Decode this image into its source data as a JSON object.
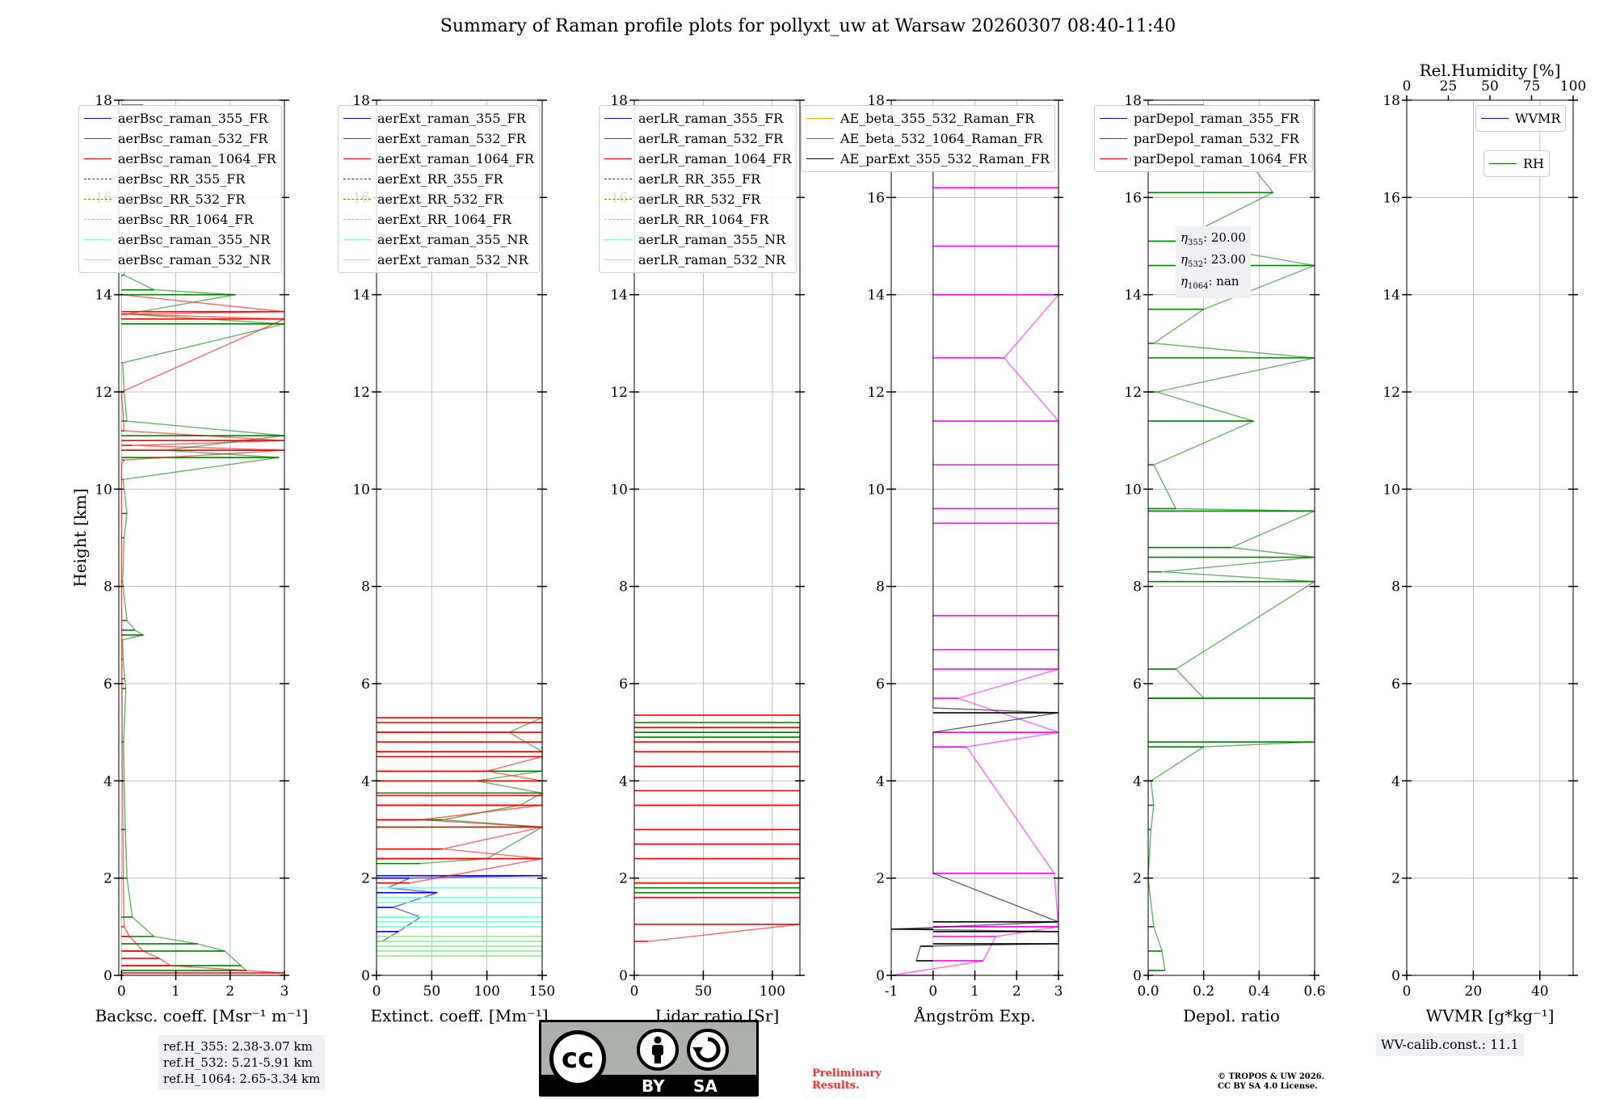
{
  "title": "Summary of Raman profile plots for pollyxt_uw at Warsaw 20260307 08:40-11:40",
  "chart_data": [
    {
      "type": "line",
      "id": "backscatter",
      "xlabel": "Backsc. coeff. [Msr⁻¹ m⁻¹]",
      "ylabel": "Height [km]",
      "xlim": [
        -0.05,
        3
      ],
      "ylim": [
        0,
        18
      ],
      "xticks": [
        0,
        1,
        2,
        3
      ],
      "yticks": [
        0,
        2,
        4,
        6,
        8,
        10,
        12,
        14,
        16,
        18
      ],
      "grid": true,
      "legend": "top-left",
      "series": [
        {
          "name": "aerBsc_raman_355_FR",
          "color": "#0000ff",
          "style": "solid",
          "x": [],
          "y": []
        },
        {
          "name": "aerBsc_raman_532_FR",
          "color": "#008000",
          "style": "solid",
          "x": [
            2.3,
            2.2,
            1.9,
            1.4,
            0.6,
            0.2,
            0.1,
            0.07,
            0.05,
            0.04,
            0.08,
            0.03,
            0.06,
            0.02,
            0.4,
            0.1,
            0.25,
            0.02,
            0.05,
            0.1,
            0.03,
            2.9,
            0.8,
            3.0,
            0.1,
            0.05,
            0.02,
            3.0,
            0.1,
            2.1,
            0.6,
            0.05,
            0.4
          ],
          "y": [
            0.1,
            0.2,
            0.5,
            0.65,
            0.8,
            1.2,
            2.0,
            3.0,
            4.0,
            4.8,
            5.9,
            6.5,
            6.1,
            6.9,
            7.0,
            7.3,
            7.1,
            8.1,
            9.0,
            9.5,
            10.2,
            10.65,
            10.8,
            11.1,
            11.4,
            12.0,
            12.6,
            13.4,
            13.6,
            14.0,
            14.1,
            14.4,
            17.9
          ]
        },
        {
          "name": "aerBsc_raman_1064_FR",
          "color": "#ff0000",
          "style": "solid",
          "x": [
            3.0,
            0.9,
            0.7,
            0.4,
            0.15,
            0.05,
            0.03,
            0.02,
            0.01,
            0.0,
            0.0,
            0.0,
            0.05,
            3.0,
            0.2,
            3.0,
            0.05,
            0.0,
            3.0,
            0.1,
            3.0,
            0.0
          ],
          "y": [
            0.05,
            0.2,
            0.35,
            0.5,
            0.8,
            1.0,
            2.0,
            4.0,
            6.0,
            8.0,
            10.0,
            10.5,
            10.6,
            10.8,
            10.9,
            11.0,
            11.2,
            12.0,
            13.5,
            13.6,
            13.65,
            14.0
          ]
        },
        {
          "name": "aerBsc_RR_355_FR",
          "color": "#800080",
          "style": "dashed",
          "x": [],
          "y": []
        },
        {
          "name": "aerBsc_RR_532_FR",
          "color": "#808000",
          "style": "dashed",
          "x": [],
          "y": []
        },
        {
          "name": "aerBsc_RR_1064_FR",
          "color": "#ffa07a",
          "style": "dashed",
          "x": [],
          "y": []
        },
        {
          "name": "aerBsc_raman_355_NR",
          "color": "#7fffd4",
          "style": "solid",
          "x": [],
          "y": []
        },
        {
          "name": "aerBsc_raman_532_NR",
          "color": "#90ee90",
          "style": "solid",
          "x": [],
          "y": []
        }
      ]
    },
    {
      "type": "line",
      "id": "extinction",
      "xlabel": "Extinct. coeff. [Mm⁻¹]",
      "xlim": [
        0,
        150
      ],
      "ylim": [
        0,
        18
      ],
      "xticks": [
        0,
        50,
        100,
        150
      ],
      "yticks": [
        0,
        2,
        4,
        6,
        8,
        10,
        12,
        14,
        16,
        18
      ],
      "grid": true,
      "legend": "top-left",
      "series": [
        {
          "name": "aerExt_raman_355_FR",
          "color": "#0000ff",
          "style": "solid",
          "x": [
            5,
            20,
            40,
            15,
            55,
            10,
            150,
            30
          ],
          "y": [
            0.7,
            0.9,
            1.2,
            1.4,
            1.7,
            1.8,
            2.05,
            2.0
          ]
        },
        {
          "name": "aerExt_raman_532_FR",
          "color": "#008000",
          "style": "solid",
          "x": [
            40,
            100,
            150,
            60,
            130,
            150,
            90,
            150,
            150,
            120,
            150
          ],
          "y": [
            2.3,
            2.4,
            3.05,
            3.2,
            3.5,
            3.75,
            4.0,
            4.2,
            4.6,
            5.0,
            5.3
          ]
        },
        {
          "name": "aerExt_raman_1064_FR",
          "color": "#ff0000",
          "style": "solid",
          "x": [
            30,
            150,
            60,
            150,
            40,
            150,
            150,
            150,
            100,
            150,
            150,
            150,
            150,
            150,
            150
          ],
          "y": [
            1.9,
            2.4,
            2.6,
            3.05,
            3.2,
            3.5,
            3.7,
            4.0,
            4.2,
            4.5,
            4.6,
            4.8,
            5.0,
            5.2,
            5.3
          ]
        },
        {
          "name": "aerExt_RR_355_FR",
          "color": "#800080",
          "style": "dashed",
          "x": [],
          "y": []
        },
        {
          "name": "aerExt_RR_532_FR",
          "color": "#808000",
          "style": "dashed",
          "x": [],
          "y": []
        },
        {
          "name": "aerExt_RR_1064_FR",
          "color": "#ffa07a",
          "style": "dashed",
          "x": [],
          "y": []
        },
        {
          "name": "aerExt_raman_355_NR",
          "color": "#7fffd4",
          "style": "solid",
          "x": [
            150,
            150,
            150,
            150,
            150,
            150
          ],
          "y": [
            1.0,
            1.1,
            1.2,
            1.5,
            1.6,
            1.8
          ]
        },
        {
          "name": "aerExt_raman_532_NR",
          "color": "#90ee90",
          "style": "solid",
          "x": [
            150,
            150,
            150,
            150,
            150
          ],
          "y": [
            0.4,
            0.5,
            0.6,
            0.7,
            0.8
          ]
        }
      ]
    },
    {
      "type": "line",
      "id": "lidar_ratio",
      "xlabel": "Lidar ratio [Sr]",
      "xlim": [
        0,
        120
      ],
      "ylim": [
        0,
        18
      ],
      "xticks": [
        0,
        50,
        100
      ],
      "yticks": [
        0,
        2,
        4,
        6,
        8,
        10,
        12,
        14,
        16,
        18
      ],
      "grid": true,
      "legend": "top-left",
      "series": [
        {
          "name": "aerLR_raman_355_FR",
          "color": "#0000ff",
          "style": "solid",
          "x": [],
          "y": []
        },
        {
          "name": "aerLR_raman_532_FR",
          "color": "#008000",
          "style": "solid",
          "x": [
            120,
            120,
            120,
            120,
            120
          ],
          "y": [
            1.7,
            1.8,
            4.9,
            5.0,
            5.2
          ]
        },
        {
          "name": "aerLR_raman_1064_FR",
          "color": "#ff0000",
          "style": "solid",
          "x": [
            10,
            120,
            120,
            120,
            120,
            120,
            120,
            120,
            120,
            120,
            120,
            120,
            120,
            120
          ],
          "y": [
            0.7,
            1.05,
            1.6,
            1.9,
            2.4,
            2.7,
            3.0,
            3.5,
            3.8,
            4.3,
            4.6,
            4.8,
            5.1,
            5.35
          ]
        },
        {
          "name": "aerLR_RR_355_FR",
          "color": "#800080",
          "style": "dashed",
          "x": [],
          "y": []
        },
        {
          "name": "aerLR_RR_532_FR",
          "color": "#808000",
          "style": "dashed",
          "x": [],
          "y": []
        },
        {
          "name": "aerLR_RR_1064_FR",
          "color": "#ffa07a",
          "style": "dashed",
          "x": [],
          "y": []
        },
        {
          "name": "aerLR_raman_355_NR",
          "color": "#7fffd4",
          "style": "solid",
          "x": [],
          "y": []
        },
        {
          "name": "aerLR_raman_532_NR",
          "color": "#90ee90",
          "style": "solid",
          "x": [],
          "y": []
        }
      ]
    },
    {
      "type": "line",
      "id": "angstrom",
      "xlabel": "Ångström Exp.",
      "xlim": [
        -1,
        3
      ],
      "ylim": [
        0,
        18
      ],
      "xticks": [
        -1,
        0,
        1,
        2,
        3
      ],
      "yticks": [
        0,
        2,
        4,
        6,
        8,
        10,
        12,
        14,
        16,
        18
      ],
      "grid": true,
      "legend": "top",
      "series": [
        {
          "name": "AE_beta_355_532_Raman_FR",
          "color": "#ffa500",
          "style": "solid",
          "x": [],
          "y": []
        },
        {
          "name": "AE_beta_532_1064_Raman_FR",
          "color": "#ff00ff",
          "style": "solid",
          "x": [
            -1,
            1.2,
            1.5,
            3.0,
            2.9,
            0.8,
            3.0,
            0.6,
            3.0,
            3.0,
            3.0,
            3.0,
            3.0,
            3.0,
            3.0,
            1.7,
            3.0,
            3.0,
            3.0
          ],
          "y": [
            0.0,
            0.3,
            0.8,
            1.0,
            2.1,
            4.7,
            5.0,
            5.7,
            6.3,
            6.7,
            7.4,
            9.3,
            9.6,
            10.5,
            11.4,
            12.7,
            14.0,
            15.0,
            16.2
          ]
        },
        {
          "name": "AE_parExt_355_532_Raman_FR",
          "color": "#000000",
          "style": "solid",
          "x": [
            -0.4,
            -0.3,
            3.0,
            3.0,
            -1,
            3.0,
            0.0,
            0.0,
            0.0,
            0.0,
            3.0,
            0.0
          ],
          "y": [
            0.3,
            0.6,
            0.65,
            0.9,
            0.95,
            1.1,
            2.1,
            3.0,
            5.0,
            5.5,
            5.4,
            17.0
          ]
        }
      ]
    },
    {
      "type": "line",
      "id": "depolarization",
      "xlabel": "Depol. ratio",
      "xlim": [
        0,
        0.6
      ],
      "ylim": [
        0,
        18
      ],
      "xticks": [
        0.0,
        0.2,
        0.4,
        0.6
      ],
      "yticks": [
        0,
        2,
        4,
        6,
        8,
        10,
        12,
        14,
        16,
        18
      ],
      "grid": true,
      "legend": "top",
      "annotations": [
        "η355: 20.00",
        "η532: 23.00",
        "η1064: nan"
      ],
      "series": [
        {
          "name": "parDepol_raman_355_FR",
          "color": "#0000ff",
          "style": "solid",
          "x": [],
          "y": []
        },
        {
          "name": "parDepol_raman_532_FR",
          "color": "#008000",
          "style": "solid",
          "x": [
            0.06,
            0.05,
            0.02,
            0.0,
            0.01,
            0.02,
            0.01,
            0.6,
            0.2,
            0.6,
            0.1,
            0.2,
            0.6,
            0.05,
            0.6,
            0.3,
            0.6,
            0.1,
            0.02,
            0.38,
            0.03,
            0.6,
            0.02,
            0.2,
            0.6,
            0.1,
            0.45,
            0.2
          ],
          "y": [
            0.1,
            0.5,
            1.0,
            2.0,
            3.0,
            3.5,
            4.0,
            4.8,
            4.7,
            5.7,
            6.3,
            5.7,
            8.1,
            8.3,
            8.6,
            8.8,
            9.55,
            9.6,
            10.5,
            11.4,
            12.0,
            12.7,
            13.0,
            13.7,
            14.6,
            15.1,
            16.1,
            17.9
          ]
        },
        {
          "name": "parDepol_raman_1064_FR",
          "color": "#ff0000",
          "style": "solid",
          "x": [],
          "y": []
        }
      ]
    },
    {
      "type": "line",
      "id": "water_vapor",
      "xlabel": "WVMR [g*kg⁻¹]",
      "x2label": "Rel.Humidity [%]",
      "xlim": [
        0,
        50
      ],
      "x2lim": [
        0,
        100
      ],
      "ylim": [
        0,
        18
      ],
      "xticks": [
        0,
        20,
        40
      ],
      "x2ticks": [
        0,
        25,
        50,
        75,
        100
      ],
      "yticks": [
        0,
        2,
        4,
        6,
        8,
        10,
        12,
        14,
        16,
        18
      ],
      "grid": true,
      "legend": "top-right",
      "series": [
        {
          "name": "WVMR",
          "color": "#0000ff",
          "style": "solid",
          "x": [],
          "y": []
        },
        {
          "name": "RH",
          "color": "#008000",
          "style": "solid",
          "x": [],
          "y": []
        }
      ]
    }
  ],
  "info": {
    "ref_h_355": "ref.H_355: 2.38-3.07 km",
    "ref_h_532": "ref.H_532: 5.21-5.91 km",
    "ref_h_1064": "ref.H_1064: 2.65-3.34 km",
    "wv_calib": "WV-calib.const.: 11.1",
    "eta_355_value": "20.00",
    "eta_532_value": "23.00",
    "eta_1064_value": "nan"
  },
  "license": {
    "cc_text": "cc",
    "by_label": "BY",
    "sa_label": "SA",
    "preliminary_line1": "Preliminary",
    "preliminary_line2": "Results.",
    "copyright_line1": "© TROPOS & UW 2026.",
    "copyright_line2": "CC BY SA 4.0 License."
  }
}
